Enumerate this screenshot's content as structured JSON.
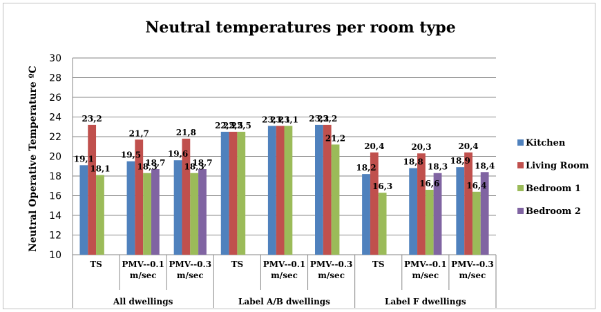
{
  "chart_data": {
    "type": "bar",
    "title": "Neutral temperatures per room type",
    "ylabel": "Neutral Operative Temperature ºC",
    "xlabel": "",
    "ylim": [
      10,
      30
    ],
    "yticks": [
      10,
      12,
      14,
      16,
      18,
      20,
      22,
      24,
      26,
      28,
      30
    ],
    "grid": true,
    "legend_position": "right",
    "groups": [
      {
        "label": "All dwellings",
        "categories": [
          [
            "TS"
          ],
          [
            "PMV--0.1",
            "m/sec"
          ],
          [
            "PMV--0.3",
            "m/sec"
          ]
        ]
      },
      {
        "label": "Label A/B dwellings",
        "categories": [
          [
            "TS"
          ],
          [
            "PMV--0.1",
            "m/sec"
          ],
          [
            "PMV--0.3",
            "m/sec"
          ]
        ]
      },
      {
        "label": "Label F dwellings",
        "categories": [
          [
            "TS"
          ],
          [
            "PMV--0.1",
            "m/sec"
          ],
          [
            "PMV--0.3",
            "m/sec"
          ]
        ]
      }
    ],
    "series": [
      {
        "name": "Kitchen",
        "color": "#4f81bd",
        "values": [
          19.1,
          19.5,
          19.6,
          22.5,
          23.1,
          23.2,
          18.2,
          18.8,
          18.9
        ],
        "labels": [
          "19,1",
          "19,5",
          "19,6",
          "22,5",
          "23,1",
          "23,2",
          "18,2",
          "18,8",
          "18,9"
        ]
      },
      {
        "name": "Living Room",
        "color": "#c0504d",
        "values": [
          23.2,
          21.7,
          21.8,
          22.5,
          23.1,
          23.2,
          20.4,
          20.3,
          20.4
        ],
        "labels": [
          "23,2",
          "21,7",
          "21,8",
          "22,5",
          "23,1",
          "23,2",
          "20,4",
          "20,3",
          "20,4"
        ]
      },
      {
        "name": "Bedroom 1",
        "color": "#9bbb59",
        "values": [
          18.1,
          18.3,
          18.3,
          22.5,
          23.1,
          21.2,
          16.3,
          16.6,
          16.4
        ],
        "labels": [
          "18,1",
          "18,3",
          "18,3",
          "22,5",
          "23,1",
          "21,2",
          "16,3",
          "16,6",
          "16,4"
        ]
      },
      {
        "name": "Bedroom 2",
        "color": "#8064a2",
        "values": [
          null,
          18.7,
          18.7,
          null,
          null,
          null,
          null,
          18.3,
          18.4
        ],
        "labels": [
          null,
          "18,7",
          "18,7",
          null,
          null,
          null,
          null,
          "18,3",
          "18,4"
        ]
      }
    ]
  }
}
